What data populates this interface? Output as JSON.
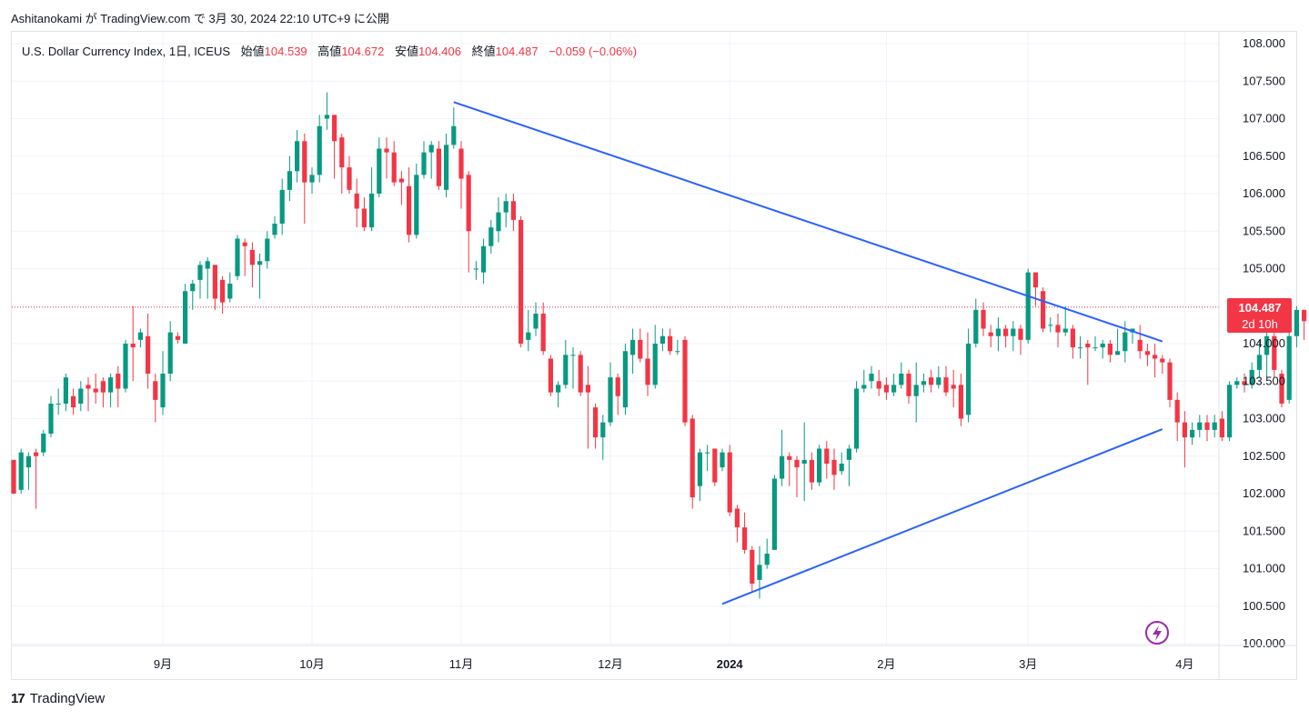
{
  "caption": {
    "author": "Ashitanokami",
    "text": "が TradingView.com で 3月 30, 2024 22:10 UTC+9 に公開"
  },
  "legend": {
    "symbol": "U.S. Dollar Currency Index, 1日, ICEUS",
    "open_label": "始値",
    "open": "104.539",
    "high_label": "高値",
    "high": "104.672",
    "low_label": "安値",
    "low": "104.406",
    "close_label": "終値",
    "close": "104.487",
    "change": "−0.059 (−0.06%)"
  },
  "price_tag": {
    "price": "104.487",
    "countdown": "2d 10h",
    "color": "#f23645"
  },
  "brand": {
    "name": "TradingView",
    "mark": "17"
  },
  "colors": {
    "up": "#089981",
    "down": "#f23645",
    "trendline": "#2962ff",
    "grid": "#f0f3fa"
  },
  "chart_data": {
    "type": "candlestick",
    "y_ticks": [
      "100.000",
      "100.500",
      "101.000",
      "101.500",
      "102.000",
      "102.500",
      "103.000",
      "103.500",
      "104.000",
      "104.500",
      "105.000",
      "105.500",
      "106.000",
      "106.500",
      "107.000",
      "107.500",
      "108.000"
    ],
    "ylim": [
      100.0,
      108.0
    ],
    "x_ticks": [
      {
        "label": "9月",
        "index": 20,
        "bold": false
      },
      {
        "label": "10月",
        "index": 40,
        "bold": false
      },
      {
        "label": "11月",
        "index": 60,
        "bold": false
      },
      {
        "label": "12月",
        "index": 80,
        "bold": false
      },
      {
        "label": "2024",
        "index": 96,
        "bold": true
      },
      {
        "label": "2月",
        "index": 117,
        "bold": false
      },
      {
        "label": "3月",
        "index": 136,
        "bold": false
      },
      {
        "label": "4月",
        "index": 157,
        "bold": false
      }
    ],
    "trendlines": [
      {
        "from": {
          "index": 59,
          "price": 107.22
        },
        "to": {
          "index": 154,
          "price": 104.03
        }
      },
      {
        "from": {
          "index": 95,
          "price": 100.53
        },
        "to": {
          "index": 154,
          "price": 102.86
        }
      }
    ],
    "last_price": 104.487,
    "candles": [
      [
        102.45,
        102.0,
        102.05,
        102.45
      ],
      [
        102.05,
        102.55,
        102.6,
        102.0
      ],
      [
        102.35,
        102.5,
        102.55,
        102.05
      ],
      [
        102.55,
        102.5,
        102.6,
        101.8
      ],
      [
        102.55,
        102.8,
        102.85,
        102.5
      ],
      [
        102.8,
        103.2,
        103.3,
        102.75
      ],
      [
        103.2,
        103.2,
        103.4,
        103.05
      ],
      [
        103.2,
        103.55,
        103.6,
        103.1
      ],
      [
        103.3,
        103.15,
        103.4,
        103.05
      ],
      [
        103.2,
        103.4,
        103.5,
        103.1
      ],
      [
        103.45,
        103.4,
        103.55,
        103.1
      ],
      [
        103.4,
        103.35,
        103.6,
        103.2
      ],
      [
        103.5,
        103.35,
        103.55,
        103.15
      ],
      [
        103.35,
        103.55,
        103.6,
        103.15
      ],
      [
        103.6,
        103.4,
        103.7,
        103.15
      ],
      [
        103.4,
        104.0,
        104.05,
        103.35
      ],
      [
        104.0,
        103.95,
        104.5,
        103.5
      ],
      [
        104.05,
        104.15,
        104.2,
        103.95
      ],
      [
        104.1,
        103.6,
        104.4,
        103.4
      ],
      [
        103.5,
        103.25,
        103.6,
        102.95
      ],
      [
        103.15,
        103.6,
        103.9,
        103.05
      ],
      [
        103.6,
        104.15,
        104.3,
        103.5
      ],
      [
        104.1,
        104.05,
        104.15,
        104.0
      ],
      [
        104.0,
        104.7,
        104.8,
        104.0
      ],
      [
        104.7,
        104.8,
        104.85,
        104.45
      ],
      [
        104.85,
        105.05,
        105.1,
        104.6
      ],
      [
        105.0,
        105.1,
        105.15,
        104.6
      ],
      [
        105.05,
        104.6,
        105.05,
        104.45
      ],
      [
        104.85,
        104.55,
        104.9,
        104.4
      ],
      [
        104.6,
        104.8,
        104.95,
        104.55
      ],
      [
        104.9,
        105.4,
        105.45,
        104.85
      ],
      [
        105.35,
        105.3,
        105.4,
        104.9
      ],
      [
        105.25,
        105.05,
        105.35,
        104.75
      ],
      [
        105.05,
        105.1,
        105.2,
        104.6
      ],
      [
        105.1,
        105.4,
        105.5,
        105.0
      ],
      [
        105.45,
        105.6,
        105.7,
        105.4
      ],
      [
        105.6,
        106.05,
        106.2,
        105.45
      ],
      [
        106.05,
        106.3,
        106.5,
        105.9
      ],
      [
        106.3,
        106.7,
        106.85,
        106.15
      ],
      [
        106.7,
        106.15,
        106.8,
        105.6
      ],
      [
        106.15,
        106.25,
        106.35,
        106.0
      ],
      [
        106.25,
        106.9,
        107.05,
        106.15
      ],
      [
        107.0,
        107.05,
        107.35,
        106.85
      ],
      [
        107.05,
        106.7,
        107.05,
        106.2
      ],
      [
        106.75,
        106.35,
        106.8,
        106.0
      ],
      [
        106.35,
        106.05,
        106.5,
        106.0
      ],
      [
        106.0,
        105.8,
        106.2,
        105.55
      ],
      [
        105.8,
        105.55,
        105.95,
        105.5
      ],
      [
        105.55,
        106.0,
        106.35,
        105.5
      ],
      [
        106.0,
        106.6,
        106.75,
        105.95
      ],
      [
        106.6,
        106.55,
        106.75,
        106.2
      ],
      [
        106.55,
        106.15,
        106.7,
        106.1
      ],
      [
        106.2,
        106.15,
        106.3,
        105.85
      ],
      [
        106.1,
        105.45,
        106.35,
        105.35
      ],
      [
        105.45,
        106.25,
        106.4,
        105.4
      ],
      [
        106.25,
        106.55,
        106.7,
        106.2
      ],
      [
        106.55,
        106.65,
        106.7,
        106.2
      ],
      [
        106.6,
        106.1,
        106.7,
        106.05
      ],
      [
        106.05,
        106.65,
        106.8,
        105.95
      ],
      [
        106.65,
        106.9,
        107.15,
        106.6
      ],
      [
        106.6,
        106.2,
        106.7,
        105.8
      ],
      [
        106.25,
        105.5,
        106.3,
        104.95
      ],
      [
        105.0,
        105.0,
        105.1,
        104.85
      ],
      [
        104.95,
        105.3,
        105.4,
        104.8
      ],
      [
        105.3,
        105.55,
        105.65,
        105.2
      ],
      [
        105.5,
        105.75,
        105.95,
        105.35
      ],
      [
        105.75,
        105.9,
        106.0,
        105.55
      ],
      [
        105.9,
        105.65,
        106.0,
        105.5
      ],
      [
        105.65,
        104.0,
        105.7,
        103.95
      ],
      [
        104.05,
        104.15,
        104.45,
        103.9
      ],
      [
        104.2,
        104.4,
        104.55,
        104.1
      ],
      [
        104.4,
        103.9,
        104.55,
        103.85
      ],
      [
        103.8,
        103.35,
        103.85,
        103.3
      ],
      [
        103.35,
        103.45,
        103.5,
        103.15
      ],
      [
        103.45,
        103.85,
        104.05,
        103.4
      ],
      [
        103.85,
        103.85,
        103.95,
        103.4
      ],
      [
        103.85,
        103.35,
        103.9,
        103.3
      ],
      [
        103.45,
        103.35,
        103.7,
        102.6
      ],
      [
        103.15,
        102.75,
        103.2,
        102.6
      ],
      [
        102.75,
        102.95,
        103.05,
        102.45
      ],
      [
        102.95,
        103.55,
        103.75,
        102.9
      ],
      [
        103.55,
        103.3,
        103.6,
        103.05
      ],
      [
        103.15,
        103.9,
        104.0,
        103.05
      ],
      [
        103.85,
        104.05,
        104.2,
        103.6
      ],
      [
        104.05,
        103.8,
        104.2,
        103.75
      ],
      [
        103.8,
        103.45,
        104.15,
        103.3
      ],
      [
        103.45,
        104.0,
        104.25,
        103.4
      ],
      [
        104.0,
        104.1,
        104.2,
        103.9
      ],
      [
        104.1,
        103.9,
        104.2,
        103.85
      ],
      [
        103.9,
        103.9,
        104.05,
        103.85
      ],
      [
        104.05,
        102.95,
        104.1,
        102.9
      ],
      [
        103.0,
        101.95,
        103.05,
        101.8
      ],
      [
        102.1,
        102.55,
        102.6,
        101.9
      ],
      [
        102.55,
        102.55,
        102.65,
        102.3
      ],
      [
        102.6,
        102.15,
        102.6,
        102.1
      ],
      [
        102.35,
        102.55,
        102.6,
        102.3
      ],
      [
        102.55,
        101.75,
        102.65,
        101.7
      ],
      [
        101.8,
        101.55,
        101.85,
        101.35
      ],
      [
        101.55,
        101.25,
        101.75,
        101.2
      ],
      [
        101.25,
        100.8,
        101.3,
        100.7
      ],
      [
        100.85,
        101.05,
        101.3,
        100.6
      ],
      [
        101.05,
        101.2,
        101.4,
        101.0
      ],
      [
        101.25,
        102.2,
        102.25,
        101.25
      ],
      [
        102.2,
        102.5,
        102.85,
        102.1
      ],
      [
        102.5,
        102.45,
        102.55,
        102.1
      ],
      [
        102.45,
        102.35,
        102.5,
        101.95
      ],
      [
        102.4,
        102.45,
        102.95,
        101.9
      ],
      [
        102.45,
        102.15,
        102.55,
        102.05
      ],
      [
        102.15,
        102.6,
        102.65,
        102.1
      ],
      [
        102.6,
        102.4,
        102.7,
        102.2
      ],
      [
        102.45,
        102.25,
        102.6,
        102.05
      ],
      [
        102.3,
        102.4,
        102.55,
        102.25
      ],
      [
        102.45,
        102.6,
        102.65,
        102.1
      ],
      [
        102.6,
        103.4,
        103.5,
        102.55
      ],
      [
        103.4,
        103.45,
        103.65,
        103.35
      ],
      [
        103.5,
        103.6,
        103.7,
        103.4
      ],
      [
        103.5,
        103.4,
        103.65,
        103.3
      ],
      [
        103.45,
        103.35,
        103.55,
        103.25
      ],
      [
        103.35,
        103.45,
        103.6,
        103.3
      ],
      [
        103.45,
        103.6,
        103.75,
        103.4
      ],
      [
        103.6,
        103.3,
        103.65,
        103.2
      ],
      [
        103.3,
        103.45,
        103.75,
        102.95
      ],
      [
        103.45,
        103.5,
        103.6,
        103.35
      ],
      [
        103.55,
        103.45,
        103.65,
        103.35
      ],
      [
        103.45,
        103.55,
        103.7,
        103.4
      ],
      [
        103.55,
        103.35,
        103.7,
        103.3
      ],
      [
        103.45,
        103.4,
        103.65,
        103.15
      ],
      [
        103.45,
        103.0,
        103.6,
        102.9
      ],
      [
        103.05,
        104.0,
        104.2,
        102.95
      ],
      [
        104.0,
        104.45,
        104.6,
        103.95
      ],
      [
        104.45,
        104.2,
        104.55,
        104.1
      ],
      [
        104.15,
        104.1,
        104.25,
        103.95
      ],
      [
        104.1,
        104.2,
        104.35,
        103.9
      ],
      [
        104.2,
        104.1,
        104.25,
        103.95
      ],
      [
        104.1,
        104.2,
        104.3,
        103.9
      ],
      [
        104.2,
        104.05,
        104.25,
        103.85
      ],
      [
        104.05,
        104.95,
        105.0,
        104.0
      ],
      [
        104.95,
        104.75,
        104.95,
        104.5
      ],
      [
        104.7,
        104.2,
        104.75,
        104.15
      ],
      [
        104.25,
        104.25,
        104.35,
        104.15
      ],
      [
        104.25,
        104.15,
        104.4,
        103.95
      ],
      [
        104.15,
        104.2,
        104.5,
        104.1
      ],
      [
        104.2,
        103.95,
        104.25,
        103.8
      ],
      [
        103.95,
        103.95,
        104.1,
        103.8
      ],
      [
        104.0,
        103.95,
        104.05,
        103.45
      ],
      [
        103.95,
        103.95,
        104.1,
        103.9
      ],
      [
        103.95,
        104.0,
        104.05,
        103.8
      ],
      [
        104.0,
        103.85,
        104.05,
        103.75
      ],
      [
        103.85,
        103.9,
        104.2,
        103.85
      ],
      [
        103.9,
        104.15,
        104.3,
        103.75
      ],
      [
        104.15,
        104.2,
        104.2,
        104.0
      ],
      [
        104.05,
        103.9,
        104.25,
        103.8
      ],
      [
        103.9,
        103.85,
        104.0,
        103.7
      ],
      [
        103.85,
        103.8,
        104.0,
        103.55
      ],
      [
        103.8,
        103.75,
        103.85,
        103.6
      ],
      [
        103.75,
        103.25,
        103.8,
        103.15
      ],
      [
        103.25,
        102.95,
        103.35,
        102.7
      ],
      [
        102.95,
        102.75,
        103.1,
        102.35
      ],
      [
        102.75,
        102.85,
        102.95,
        102.65
      ],
      [
        102.85,
        102.95,
        103.05,
        102.75
      ],
      [
        102.95,
        102.85,
        103.05,
        102.7
      ],
      [
        102.85,
        102.95,
        103.05,
        102.75
      ],
      [
        103.0,
        102.75,
        103.1,
        102.7
      ],
      [
        102.75,
        103.45,
        103.5,
        102.7
      ],
      [
        103.45,
        103.5,
        103.55,
        103.4
      ],
      [
        103.5,
        103.45,
        103.6,
        103.35
      ],
      [
        103.45,
        103.65,
        103.75,
        103.4
      ],
      [
        103.65,
        103.85,
        104.05,
        103.55
      ],
      [
        103.85,
        104.1,
        104.15,
        103.55
      ],
      [
        104.1,
        103.65,
        104.15,
        103.55
      ],
      [
        103.6,
        103.2,
        103.65,
        103.15
      ],
      [
        103.25,
        104.1,
        104.5,
        103.2
      ],
      [
        104.1,
        104.45,
        104.5,
        103.95
      ],
      [
        104.45,
        104.3,
        104.45,
        104.05
      ],
      [
        104.25,
        104.3,
        104.35,
        104.1
      ],
      [
        104.3,
        104.45,
        104.5,
        104.2
      ],
      [
        104.45,
        104.55,
        104.65,
        104.35
      ],
      [
        104.55,
        104.45,
        104.6,
        104.3
      ],
      [
        104.539,
        104.487,
        104.672,
        104.406
      ]
    ]
  }
}
